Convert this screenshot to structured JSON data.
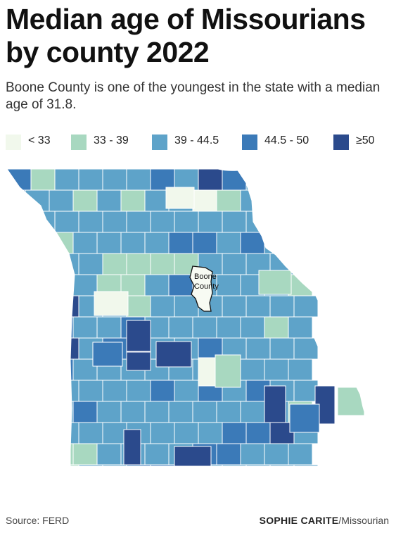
{
  "title": "Median age of Missourians by county 2022",
  "subtitle": "Boone County is one of the youngest in the state with a median age of 31.8.",
  "legend": [
    {
      "label": "< 33",
      "color": "#f1f8ec"
    },
    {
      "label": "33 - 39",
      "color": "#a8d8c0"
    },
    {
      "label": "39 - 44.5",
      "color": "#5ea3c9"
    },
    {
      "label": "44.5 - 50",
      "color": "#3b7ab8"
    },
    {
      "label": "≥50",
      "color": "#2b4a8c"
    }
  ],
  "map": {
    "highlight_label_line1": "Boone",
    "highlight_label_line2": "County",
    "highlight_value": 31.8,
    "border_color": "#ffffff"
  },
  "footer": {
    "source": "Source: FERD",
    "author": "SOPHIE CARITE",
    "org": "/Missourian"
  }
}
